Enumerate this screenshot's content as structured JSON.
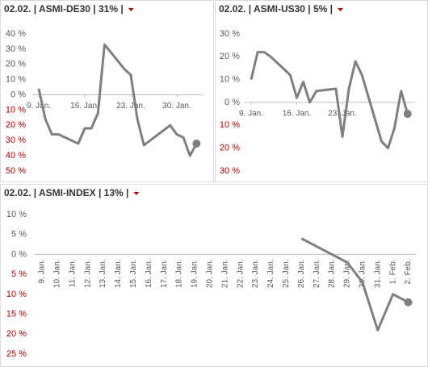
{
  "chart_data": [
    {
      "type": "line",
      "title": "02.02. | ASMI-DE30 | 31% |",
      "x": [
        9,
        10,
        11,
        12,
        15,
        16,
        17,
        18,
        19,
        22,
        23,
        24,
        25,
        29,
        30,
        31,
        32,
        33
      ],
      "series": [
        {
          "color": "#7f7f7f",
          "values": [
            4,
            -16,
            -26,
            -26,
            -32,
            -22,
            -22,
            -12,
            33,
            17,
            13,
            -16,
            -33,
            -20,
            -26,
            -28,
            -40,
            -32
          ]
        }
      ],
      "xlim": [
        8,
        34
      ],
      "xticks": [
        {
          "value": 9,
          "label": "9. Jan."
        },
        {
          "value": 16,
          "label": "16. Jan."
        },
        {
          "value": 23,
          "label": "23. Jan."
        },
        {
          "value": 30,
          "label": "30. Jan."
        }
      ],
      "ylim": [
        -50,
        40
      ],
      "yticks": [
        {
          "value": 40,
          "label": "40 %"
        },
        {
          "value": 30,
          "label": "30 %"
        },
        {
          "value": 20,
          "label": "20 %"
        },
        {
          "value": 10,
          "label": "10 %"
        },
        {
          "value": 0,
          "label": "0 %"
        },
        {
          "value": -10,
          "label": "10 %"
        },
        {
          "value": -20,
          "label": "20 %"
        },
        {
          "value": -30,
          "label": "30 %"
        },
        {
          "value": -40,
          "label": "40 %"
        },
        {
          "value": -50,
          "label": "50 %"
        }
      ]
    },
    {
      "type": "line",
      "title": "02.02. | ASMI-US30 | 5% |",
      "x": [
        9,
        10,
        11,
        12,
        15,
        16,
        17,
        18,
        19,
        22,
        23,
        24,
        25,
        26,
        29,
        30,
        31,
        32,
        33
      ],
      "series": [
        {
          "color": "#7f7f7f",
          "values": [
            10,
            22,
            22,
            20,
            12,
            2,
            9,
            0,
            5,
            6,
            -15,
            6,
            18,
            12,
            -17,
            -20,
            -11,
            5,
            -5
          ]
        }
      ],
      "xlim": [
        8,
        34
      ],
      "xticks": [
        {
          "value": 9,
          "label": "9. Jan."
        },
        {
          "value": 16,
          "label": "16. Jan."
        },
        {
          "value": 23,
          "label": "23. Jan."
        }
      ],
      "ylim": [
        -30,
        30
      ],
      "yticks": [
        {
          "value": 30,
          "label": "30 %"
        },
        {
          "value": 20,
          "label": "20 %"
        },
        {
          "value": 10,
          "label": "10 %"
        },
        {
          "value": 0,
          "label": "0 %"
        },
        {
          "value": -10,
          "label": "10 %"
        },
        {
          "value": -20,
          "label": "20 %"
        },
        {
          "value": -30,
          "label": "30 %"
        }
      ]
    },
    {
      "type": "line",
      "title": "02.02. | ASMI-INDEX | 13% |",
      "categories": [
        "9. Jan.",
        "10. Jan.",
        "11. Jan.",
        "12. Jan.",
        "13. Jan.",
        "14. Jan.",
        "15. Jan.",
        "16. Jan.",
        "17. Jan.",
        "18. Jan.",
        "19. Jan.",
        "20. Jan.",
        "21. Jan.",
        "22. Jan.",
        "23. Jan.",
        "24. Jan.",
        "25. Jan.",
        "26. Jan.",
        "27. Jan.",
        "28. Jan.",
        "29. Jan.",
        "30. Jan.",
        "31. Jan.",
        "1. Feb.",
        "2. Feb."
      ],
      "series": [
        {
          "color": "#7f7f7f",
          "values": [
            null,
            null,
            null,
            null,
            null,
            null,
            null,
            null,
            null,
            null,
            null,
            null,
            null,
            null,
            null,
            null,
            null,
            4,
            2,
            0,
            -2,
            -7,
            -19,
            -10,
            -12
          ]
        }
      ],
      "ylim": [
        -25,
        10
      ],
      "yticks": [
        {
          "value": 10,
          "label": "10 %"
        },
        {
          "value": 5,
          "label": "5 %"
        },
        {
          "value": 0,
          "label": "0 %"
        },
        {
          "value": -5,
          "label": "5 %"
        },
        {
          "value": -10,
          "label": "10 %"
        },
        {
          "value": -15,
          "label": "15 %"
        },
        {
          "value": -20,
          "label": "20 %"
        },
        {
          "value": -25,
          "label": "25 %"
        }
      ]
    }
  ]
}
